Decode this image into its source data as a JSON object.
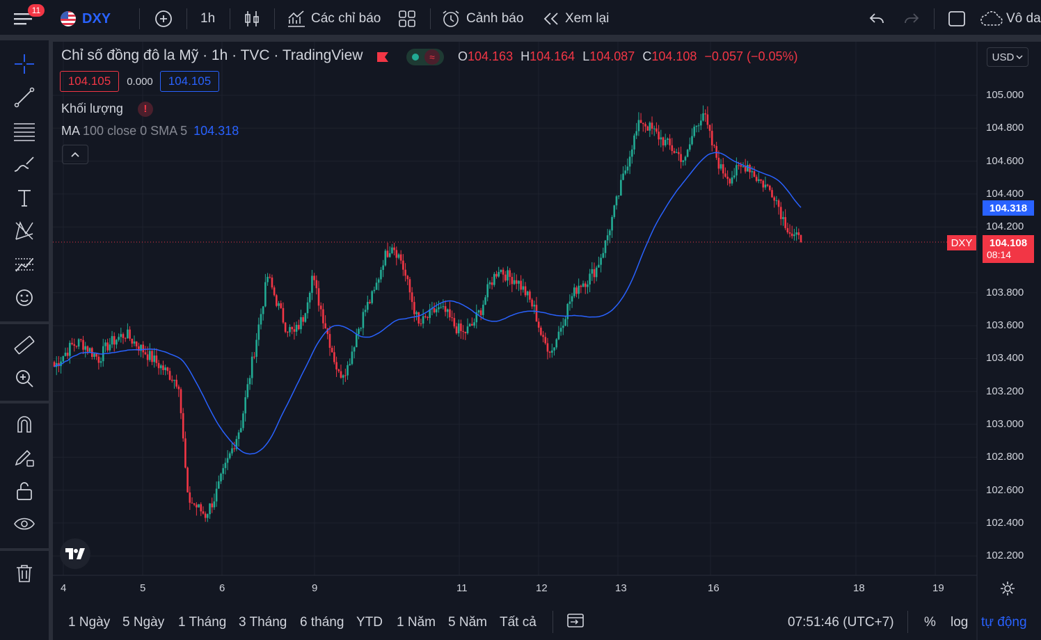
{
  "topbar": {
    "notifications": "11",
    "symbol": "DXY",
    "interval": "1h",
    "indicators_label": "Các chỉ báo",
    "alerts_label": "Cảnh báo",
    "replay_label": "Xem lại",
    "layout_name": "Vô da",
    "colors": {
      "accent": "#2962ff",
      "bg": "#131722"
    }
  },
  "legend": {
    "title": "Chỉ số đồng đô la Mỹ · 1h · TVC · TradingView",
    "open_k": "O",
    "open": "104.163",
    "high_k": "H",
    "high": "104.164",
    "low_k": "L",
    "low": "104.087",
    "close_k": "C",
    "close": "104.108",
    "change": "−0.057 (−0.05%)",
    "bid": "104.105",
    "spread": "0.000",
    "ask": "104.105"
  },
  "indicators": {
    "volume_label": "Khối lượng",
    "ma_name": "MA",
    "ma_params": "100 close 0 SMA 5",
    "ma_value": "104.318"
  },
  "price_axis": {
    "currency": "USD",
    "labels": [
      "105.000",
      "104.800",
      "104.600",
      "104.400",
      "104.200",
      "103.800",
      "103.600",
      "103.400",
      "103.200",
      "103.000",
      "102.800",
      "102.600",
      "102.400",
      "102.200"
    ],
    "ma_tag": "104.318",
    "last_tag": "104.108",
    "countdown": "08:14",
    "symbol_tag": "DXY"
  },
  "time_axis": {
    "labels": [
      "4",
      "5",
      "6",
      "9",
      "11",
      "12",
      "13",
      "16",
      "18",
      "19"
    ]
  },
  "bottom": {
    "ranges": [
      "1 Ngày",
      "5 Ngày",
      "1 Tháng",
      "3 Tháng",
      "6 tháng",
      "YTD",
      "1 Năm",
      "5 Năm",
      "Tất cả"
    ],
    "clock": "07:51:46 (UTC+7)",
    "percent": "%",
    "log": "log",
    "auto": "tự động"
  },
  "chart_data": {
    "type": "candlestick",
    "title": "Chỉ số đồng đô la Mỹ",
    "interval": "1h",
    "ylim": [
      102.15,
      105.25
    ],
    "x_ticks": [
      "4",
      "5",
      "6",
      "9",
      "11",
      "12",
      "13",
      "16",
      "18",
      "19"
    ],
    "close_series": [
      103.35,
      103.42,
      103.48,
      103.5,
      103.45,
      103.4,
      103.48,
      103.52,
      103.55,
      103.5,
      103.45,
      103.4,
      103.35,
      103.3,
      103.25,
      102.55,
      102.5,
      102.45,
      102.55,
      102.7,
      102.85,
      103.0,
      103.3,
      103.6,
      103.9,
      103.75,
      103.6,
      103.55,
      103.65,
      103.9,
      103.7,
      103.5,
      103.3,
      103.35,
      103.55,
      103.7,
      103.8,
      104.0,
      104.1,
      104.0,
      103.8,
      103.6,
      103.65,
      103.7,
      103.68,
      103.6,
      103.55,
      103.6,
      103.7,
      103.85,
      103.95,
      103.9,
      103.88,
      103.8,
      103.7,
      103.5,
      103.45,
      103.6,
      103.75,
      103.85,
      103.88,
      103.95,
      104.1,
      104.3,
      104.5,
      104.7,
      104.85,
      104.8,
      104.75,
      104.7,
      104.65,
      104.6,
      104.8,
      104.9,
      104.7,
      104.55,
      104.5,
      104.55,
      104.58,
      104.5,
      104.45,
      104.4,
      104.25,
      104.15,
      104.11
    ],
    "ma_series": {
      "name": "MA 100 close 0 SMA 5",
      "last": 104.318
    },
    "last_price": 104.108
  }
}
